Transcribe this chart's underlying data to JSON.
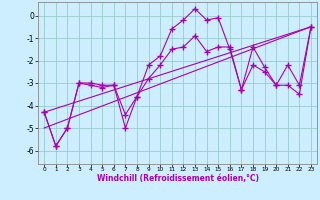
{
  "xlabel": "Windchill (Refroidissement éolien,°C)",
  "background_color": "#cceeff",
  "line_color": "#aa00aa",
  "grid_color": "#99cccc",
  "xlim": [
    -0.5,
    23.5
  ],
  "ylim": [
    -6.6,
    0.6
  ],
  "yticks": [
    0,
    -1,
    -2,
    -3,
    -4,
    -5,
    -6
  ],
  "xticks": [
    0,
    1,
    2,
    3,
    4,
    5,
    6,
    7,
    8,
    9,
    10,
    11,
    12,
    13,
    14,
    15,
    16,
    17,
    18,
    19,
    20,
    21,
    22,
    23
  ],
  "series_zigzag1_x": [
    0,
    1,
    2,
    3,
    4,
    5,
    6,
    7,
    8,
    9,
    10,
    11,
    12,
    13,
    14,
    15,
    16,
    17,
    18,
    19,
    20,
    21,
    22,
    23
  ],
  "series_zigzag1_y": [
    -4.3,
    -5.8,
    -5.0,
    -3.0,
    -3.0,
    -3.1,
    -3.1,
    -4.4,
    -3.6,
    -2.2,
    -1.8,
    -0.6,
    -0.2,
    0.3,
    -0.2,
    -0.1,
    -1.5,
    -3.3,
    -1.4,
    -2.3,
    -3.1,
    -2.2,
    -3.1,
    -0.5
  ],
  "series_zigzag2_x": [
    0,
    1,
    2,
    3,
    4,
    5,
    6,
    7,
    8,
    9,
    10,
    11,
    12,
    13,
    14,
    15,
    16,
    17,
    18,
    19,
    20,
    21,
    22,
    23
  ],
  "series_zigzag2_y": [
    -4.3,
    -5.8,
    -5.0,
    -3.0,
    -3.1,
    -3.2,
    -3.1,
    -5.0,
    -3.6,
    -2.8,
    -2.2,
    -1.5,
    -1.4,
    -0.9,
    -1.6,
    -1.4,
    -1.4,
    -3.3,
    -2.2,
    -2.5,
    -3.1,
    -3.1,
    -3.5,
    -0.5
  ],
  "series_trend1_x": [
    0,
    23
  ],
  "series_trend1_y": [
    -4.3,
    -0.5
  ],
  "series_trend2_x": [
    0,
    23
  ],
  "series_trend2_y": [
    -5.0,
    -0.5
  ]
}
